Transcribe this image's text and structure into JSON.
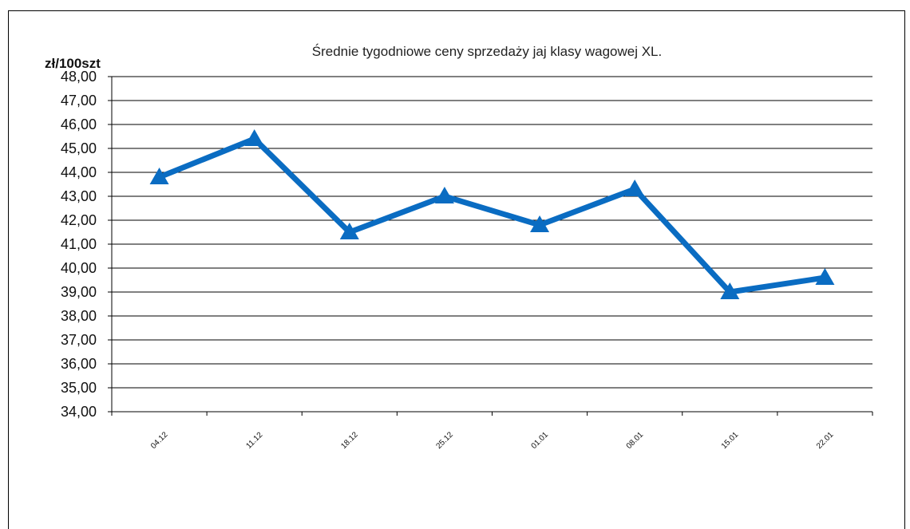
{
  "chart_data": {
    "type": "line",
    "title": "Średnie tygodniowe ceny sprzedaży jaj klasy wagowej XL.",
    "ylabel": "zł/100szt",
    "xlabel": "",
    "categories": [
      "04.12",
      "11.12",
      "18.12",
      "25.12",
      "01.01",
      "08.01",
      "15.01",
      "22.01"
    ],
    "series": [
      {
        "values": [
          43.8,
          45.4,
          41.5,
          43.0,
          41.8,
          43.3,
          39.0,
          39.6
        ]
      }
    ],
    "ylim": [
      34,
      48
    ],
    "ytick_step": 1,
    "ytick_labels": [
      "34,00",
      "35,00",
      "36,00",
      "37,00",
      "38,00",
      "39,00",
      "40,00",
      "41,00",
      "42,00",
      "43,00",
      "44,00",
      "45,00",
      "46,00",
      "47,00",
      "48,00"
    ],
    "grid": true,
    "marker": "triangle",
    "line_color": "#0a6cc2"
  }
}
